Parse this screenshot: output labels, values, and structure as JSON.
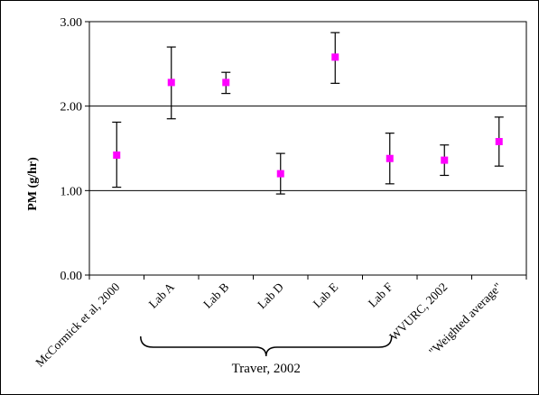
{
  "chart_data": {
    "type": "scatter",
    "ylabel": "PM (g/hr)",
    "xlabel": "",
    "ylim": [
      0,
      3
    ],
    "yticks": [
      "0.00",
      "1.00",
      "2.00",
      "3.00"
    ],
    "grid": "horizontal",
    "marker_color": "#ff00ff",
    "categories": [
      "McCormick et al, 2000",
      "Lab A",
      "Lab B",
      "Lab D",
      "Lab E",
      "Lab F",
      "WVURC, 2002",
      "\"Weighted average\""
    ],
    "values": [
      1.42,
      2.28,
      2.28,
      1.2,
      2.58,
      1.38,
      1.36,
      1.58
    ],
    "error_low": [
      1.04,
      1.85,
      2.15,
      0.96,
      2.27,
      1.08,
      1.18,
      1.29
    ],
    "error_high": [
      1.81,
      2.7,
      2.4,
      1.44,
      2.87,
      1.68,
      1.54,
      1.87
    ],
    "group_annotation": {
      "label": "Traver, 2002",
      "spans_categories": [
        "Lab A",
        "Lab F"
      ]
    }
  }
}
